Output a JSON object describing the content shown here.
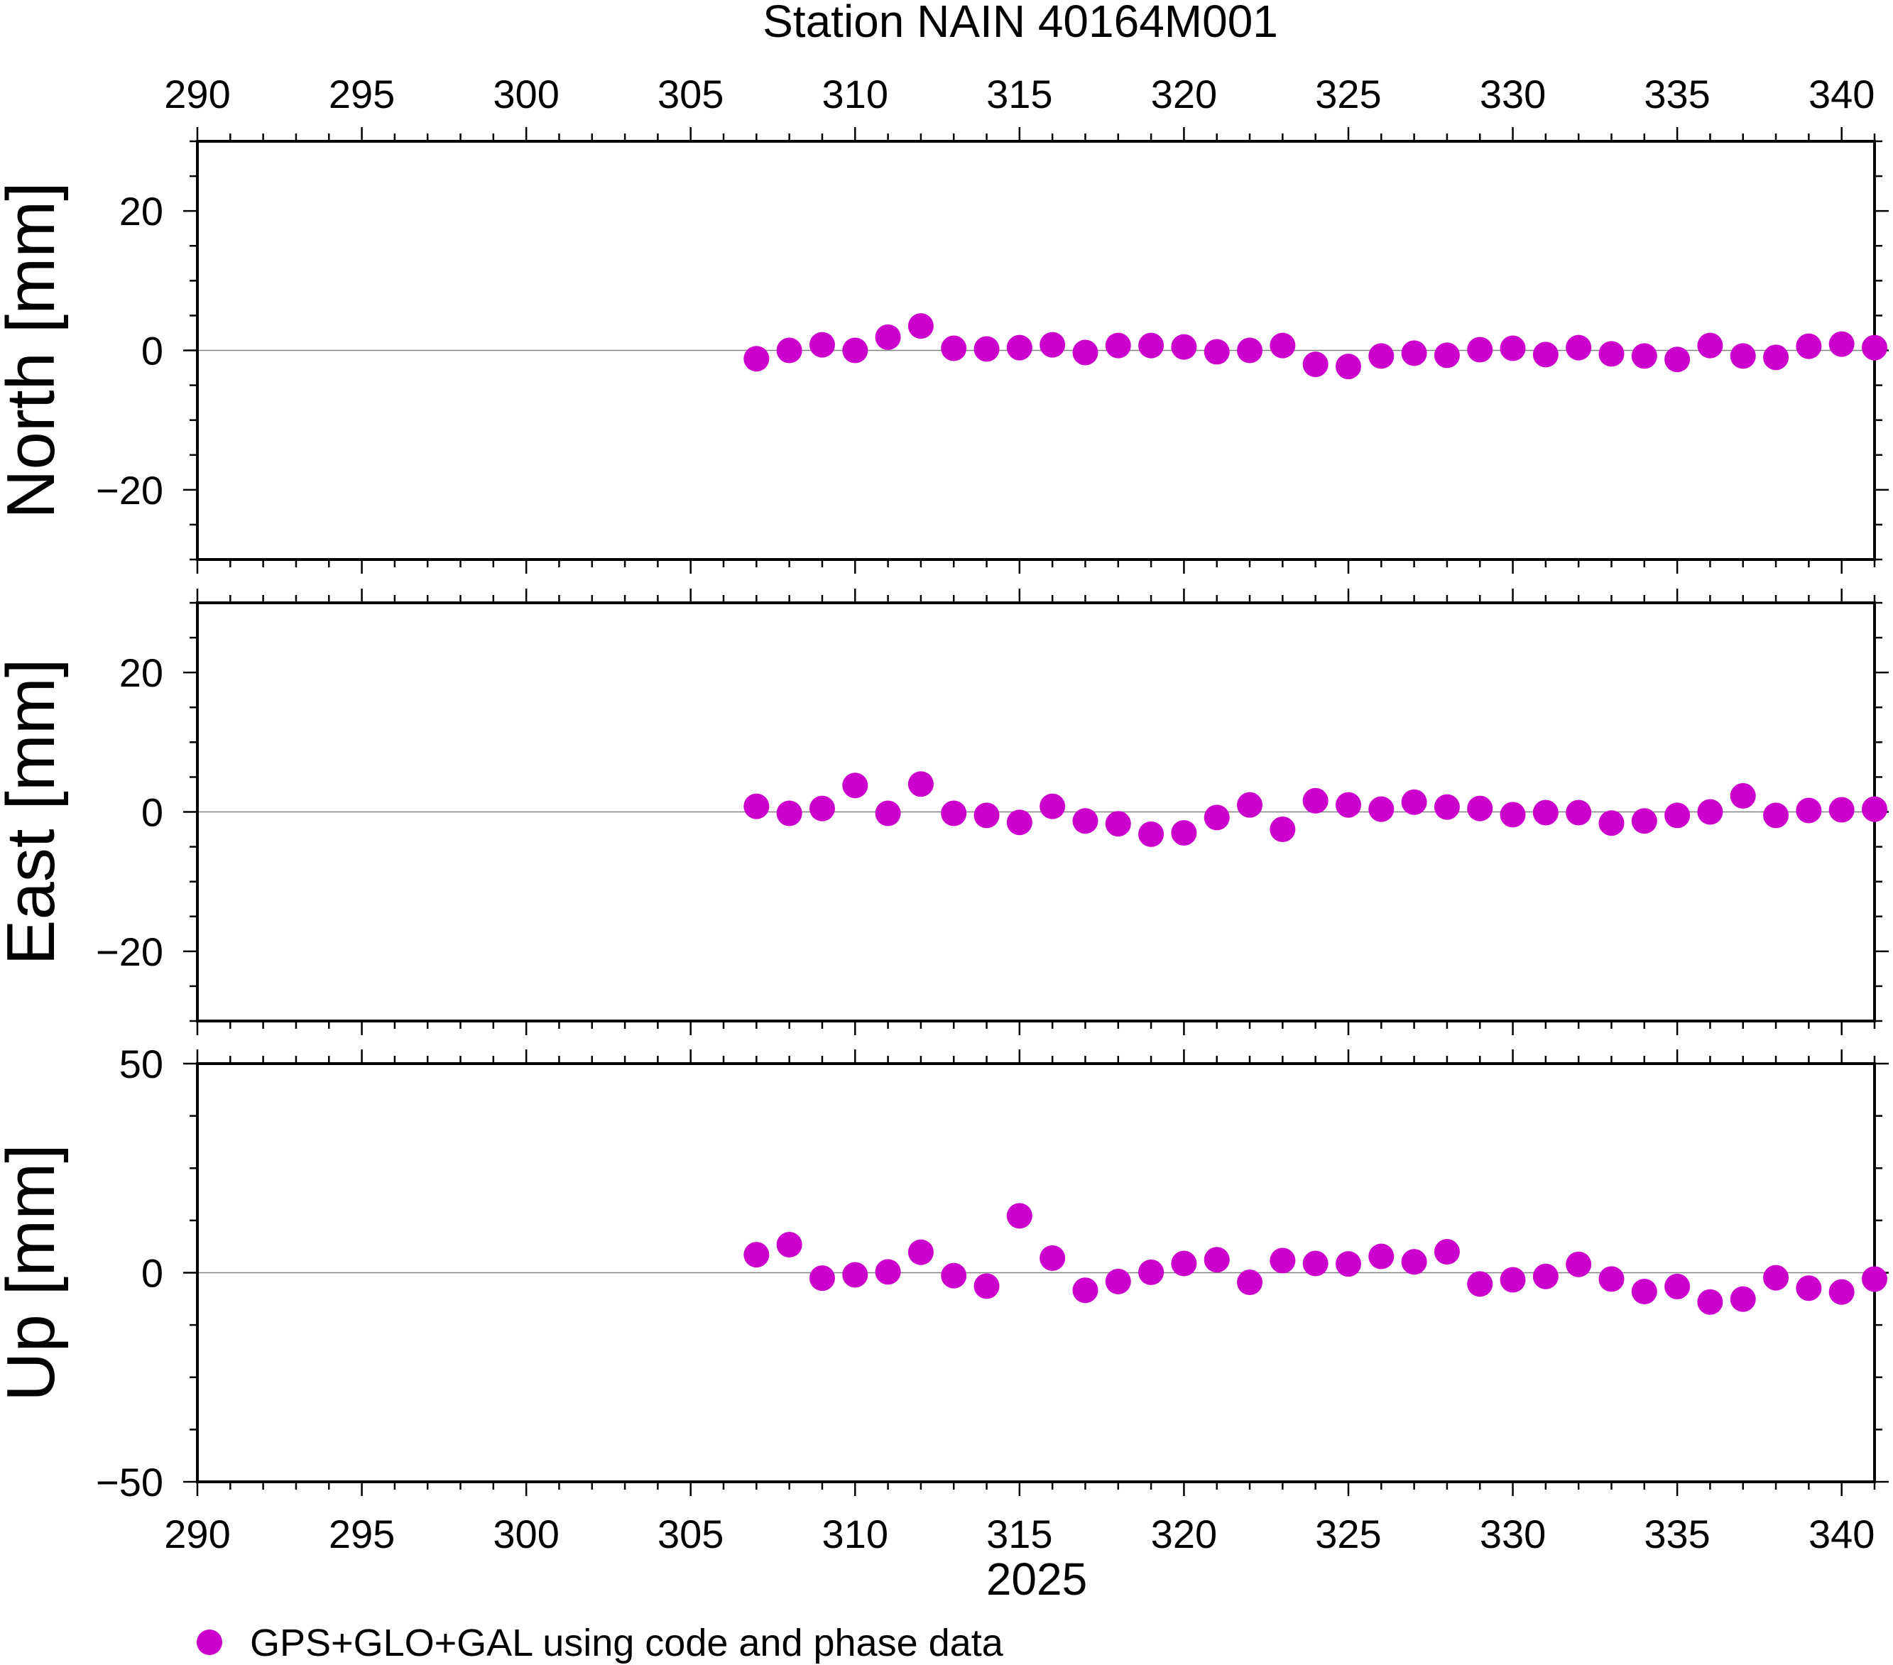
{
  "chart_data": {
    "type": "scatter",
    "title": "Station NAIN 40164M001",
    "xlabel": "2025",
    "xlim": [
      290,
      341
    ],
    "x_ticks": [
      290,
      295,
      300,
      305,
      310,
      315,
      320,
      325,
      330,
      335,
      340
    ],
    "marker_color": "#cc00cc",
    "legend": {
      "label": "GPS+GLO+GAL using code and phase data",
      "position": "bottom-left"
    },
    "panels": [
      {
        "name": "north",
        "ylabel": "North [mm]",
        "ylim": [
          -30,
          30
        ],
        "y_ticks": [
          -20,
          0,
          20
        ],
        "y_tick_labels": [
          "−20",
          "0",
          "20"
        ],
        "x": [
          307,
          308,
          309,
          310,
          311,
          312,
          313,
          314,
          315,
          316,
          317,
          318,
          319,
          320,
          321,
          322,
          323,
          324,
          325,
          326,
          327,
          328,
          329,
          330,
          331,
          332,
          333,
          334,
          335,
          336,
          337,
          338,
          339,
          340,
          341
        ],
        "y": [
          -1.2,
          0.0,
          0.8,
          0.0,
          1.9,
          3.5,
          0.3,
          0.2,
          0.4,
          0.8,
          -0.3,
          0.7,
          0.7,
          0.5,
          -0.2,
          0.0,
          0.7,
          -2.0,
          -2.3,
          -0.8,
          -0.4,
          -0.7,
          0.1,
          0.3,
          -0.6,
          0.4,
          -0.5,
          -0.8,
          -1.3,
          0.7,
          -0.8,
          -1.0,
          0.6,
          0.9,
          0.4
        ]
      },
      {
        "name": "east",
        "ylabel": "East [mm]",
        "ylim": [
          -30,
          30
        ],
        "y_ticks": [
          -20,
          0,
          20
        ],
        "y_tick_labels": [
          "−20",
          "0",
          "20"
        ],
        "x": [
          307,
          308,
          309,
          310,
          311,
          312,
          313,
          314,
          315,
          316,
          317,
          318,
          319,
          320,
          321,
          322,
          323,
          324,
          325,
          326,
          327,
          328,
          329,
          330,
          331,
          332,
          333,
          334,
          335,
          336,
          337,
          338,
          339,
          340,
          341
        ],
        "y": [
          0.8,
          -0.2,
          0.5,
          3.8,
          -0.2,
          4.0,
          -0.2,
          -0.5,
          -1.5,
          0.8,
          -1.3,
          -1.7,
          -3.2,
          -3.0,
          -0.8,
          1.0,
          -2.5,
          1.6,
          1.0,
          0.4,
          1.4,
          0.7,
          0.5,
          -0.4,
          -0.1,
          -0.1,
          -1.6,
          -1.3,
          -0.5,
          0.0,
          2.3,
          -0.5,
          0.2,
          0.3,
          0.4
        ]
      },
      {
        "name": "up",
        "ylabel": "Up [mm]",
        "ylim": [
          -50,
          50
        ],
        "y_ticks": [
          -50,
          0,
          50
        ],
        "y_tick_labels": [
          "−50",
          "0",
          "50"
        ],
        "x": [
          307,
          308,
          309,
          310,
          311,
          312,
          313,
          314,
          315,
          316,
          317,
          318,
          319,
          320,
          321,
          322,
          323,
          324,
          325,
          326,
          327,
          328,
          329,
          330,
          331,
          332,
          333,
          334,
          335,
          336,
          337,
          338,
          339,
          340,
          341
        ],
        "y": [
          4.3,
          6.7,
          -1.3,
          -0.5,
          0.2,
          4.9,
          -0.7,
          -3.2,
          13.6,
          3.5,
          -4.2,
          -2.1,
          0.1,
          2.2,
          3.1,
          -2.3,
          2.9,
          2.2,
          2.1,
          3.9,
          2.6,
          5.0,
          -2.7,
          -1.7,
          -0.9,
          2.0,
          -1.5,
          -4.5,
          -3.3,
          -7.0,
          -6.3,
          -1.2,
          -3.7,
          -4.6,
          -1.5
        ]
      }
    ]
  }
}
